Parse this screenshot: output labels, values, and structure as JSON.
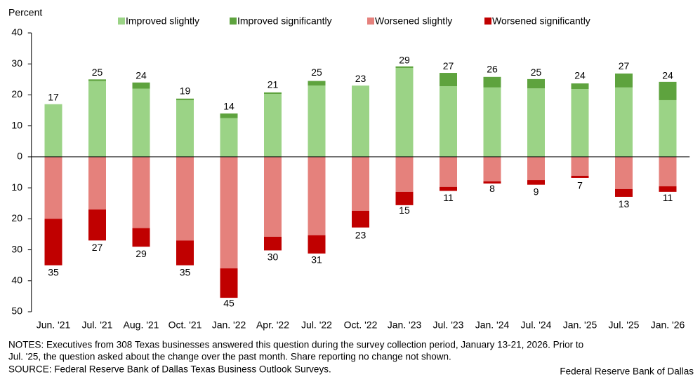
{
  "chart_data": {
    "type": "diverging_stacked_bar",
    "y_axis_label": "Percent",
    "categories": [
      "Jun. '21",
      "Jul. '21",
      "Aug. '21",
      "Oct. '21",
      "Jan. '22",
      "Apr. '22",
      "Jul. '22",
      "Oct. '22",
      "Jan. '23",
      "Jul. '23",
      "Jan. '24",
      "Jul. '24",
      "Jan. '25",
      "Jul. '25",
      "Jan. '26"
    ],
    "series": [
      {
        "name": "Improved slightly",
        "color": "#9bd386",
        "values": [
          17,
          24.5,
          22,
          18.3,
          12.5,
          20.3,
          23,
          23,
          28.7,
          22.8,
          22.4,
          22.1,
          21.9,
          22.4,
          18.3
        ]
      },
      {
        "name": "Improved significantly",
        "color": "#5ea33e",
        "values": [
          0,
          0.5,
          2,
          0.5,
          1.5,
          0.5,
          1.5,
          0,
          0.5,
          4.3,
          3.4,
          3,
          1.8,
          4.5,
          5.9
        ]
      },
      {
        "name": "Worsened slightly",
        "color": "#e5817c",
        "values": [
          -20,
          -17,
          -23,
          -27,
          -36,
          -25.8,
          -25.3,
          -17.4,
          -11.3,
          -9.7,
          -7.9,
          -7.5,
          -6.1,
          -10.4,
          -9.5
        ]
      },
      {
        "name": "Worsened significantly",
        "color": "#c00000",
        "values": [
          -15,
          -10,
          -6,
          -8,
          -9.5,
          -4.4,
          -5.9,
          -5.4,
          -4.3,
          -1.3,
          -0.7,
          -1.5,
          -0.7,
          -2.5,
          -1.8
        ]
      }
    ],
    "positive_totals": [
      17,
      25,
      24,
      19,
      14,
      21,
      25,
      23,
      29,
      27,
      26,
      25,
      24,
      27,
      24
    ],
    "negative_totals": [
      {
        "value": -35,
        "label": "35"
      },
      {
        "value": -27,
        "label": "27"
      },
      {
        "value": -29,
        "label": "29"
      },
      {
        "value": -35,
        "label": "35"
      },
      {
        "value": -45,
        "label": "45"
      },
      {
        "value": -30,
        "label": "30"
      },
      {
        "value": -31,
        "label": "31"
      },
      {
        "value": -23,
        "label": "23"
      },
      {
        "value": -15,
        "label": "15"
      },
      {
        "value": -11,
        "label": "11"
      },
      {
        "value": -8,
        "label": "8"
      },
      {
        "value": -9,
        "label": "9"
      },
      {
        "value": -7,
        "label": "7"
      },
      {
        "value": -13,
        "label": "13"
      },
      {
        "value": -11,
        "label": "11"
      }
    ],
    "ylim": [
      -50,
      40
    ],
    "yticks": [
      40,
      30,
      20,
      10,
      0,
      {
        "value": -10,
        "label": "10"
      },
      {
        "value": -20,
        "label": "20"
      },
      {
        "value": -30,
        "label": "30"
      },
      {
        "value": -40,
        "label": "40"
      },
      {
        "value": -50,
        "label": "50"
      }
    ],
    "grid": false,
    "legend": "top",
    "notes": [
      "NOTES: Executives from 308 Texas businesses answered this question during the survey collection period, January 13-21, 2026. Prior to",
      "Jul. '25, the question asked about the change over the past month. Share reporting no change not shown."
    ],
    "source": "SOURCE: Federal Reserve Bank of Dallas Texas Business Outlook Surveys.",
    "credit": "Federal Reserve Bank of Dallas"
  }
}
